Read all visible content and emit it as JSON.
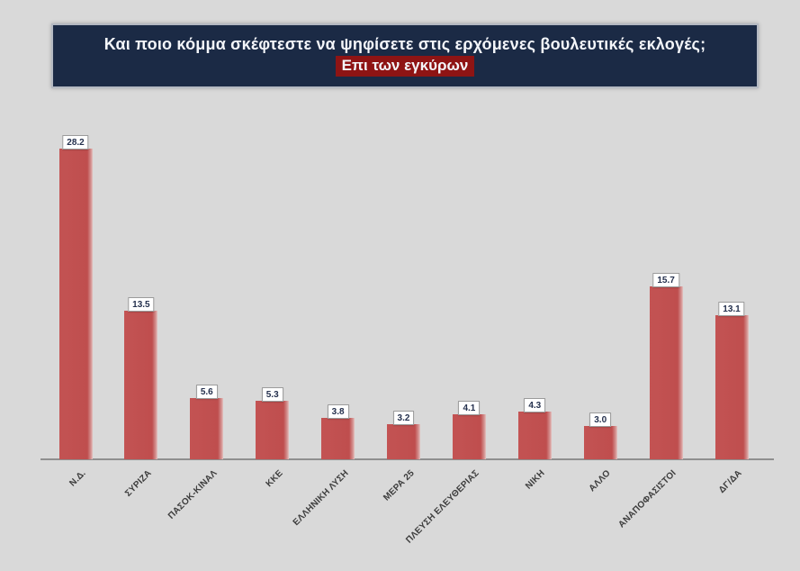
{
  "header": {
    "title": "Και ποιο κόμμα σκέφτεστε να ψηφίσετε  στις ερχόμενες βουλευτικές εκλογές;",
    "subtitle": "Επι των εγκύρων"
  },
  "chart_data": {
    "type": "bar",
    "title": "Και ποιο κόμμα σκέφτεστε να ψηφίσετε στις ερχόμενες βουλευτικές εκλογές; — Επι των εγκύρων",
    "categories": [
      "Ν.Δ.",
      "ΣΥΡΙΖΑ",
      "ΠΑΣΟΚ-ΚΙΝΑΛ",
      "ΚΚΕ",
      "ΕΛΛΗΝΙΚΗ ΛΥΣΗ",
      "ΜΕΡΑ 25",
      "ΠΛΕΥΣΗ ΕΛΕΥΘΕΡΙΑΣ",
      "ΝΙΚΗ",
      "ΑΛΛΟ",
      "ΑΝΑΠΟΦΑΣΙΣΤΟΙ",
      "ΔΓ/ΔΑ"
    ],
    "values": [
      28.2,
      13.5,
      5.6,
      5.3,
      3.8,
      3.2,
      4.1,
      4.3,
      3.0,
      15.7,
      13.1
    ],
    "xlabel": "",
    "ylabel": "",
    "ylim": [
      0,
      30
    ],
    "grid": false,
    "legend": false,
    "data_labels": "above each bar in white boxes, one decimal place",
    "category_label_rotation_deg": -45
  },
  "colors": {
    "background": "#d9d9d9",
    "header_bg": "#1b2a45",
    "header_border": "#b4b9c2",
    "subtitle_highlight_bg": "#8e1414",
    "bar": "#bf4e4e",
    "axis_line": "#8f8f8f",
    "value_label_text": "#24304d",
    "category_label_text": "#3d3d3d",
    "title_text": "#f4f6fa"
  }
}
